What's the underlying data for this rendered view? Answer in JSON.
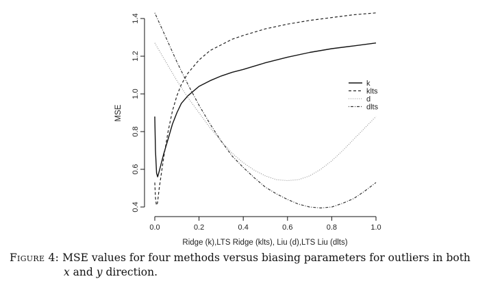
{
  "chart_data": {
    "type": "line",
    "title": "",
    "xlabel": "Ridge (k),LTS Ridge (klts), Liu (d),LTS Liu (dlts)",
    "ylabel": "MSE",
    "xlim": [
      0.0,
      1.0
    ],
    "ylim": [
      0.4,
      1.4
    ],
    "xticks": [
      "0.0",
      "0.2",
      "0.4",
      "0.6",
      "0.8",
      "1.0"
    ],
    "yticks": [
      "0.4",
      "0.6",
      "0.8",
      "1.0",
      "1.2",
      "1.4"
    ],
    "grid": false,
    "legend_position": "right-center",
    "series": [
      {
        "name": "k",
        "style": "solid",
        "points": [
          [
            0.0,
            0.88
          ],
          [
            0.003,
            0.7
          ],
          [
            0.008,
            0.58
          ],
          [
            0.013,
            0.56
          ],
          [
            0.02,
            0.59
          ],
          [
            0.04,
            0.68
          ],
          [
            0.06,
            0.76
          ],
          [
            0.08,
            0.84
          ],
          [
            0.1,
            0.9
          ],
          [
            0.12,
            0.95
          ],
          [
            0.15,
            0.99
          ],
          [
            0.2,
            1.04
          ],
          [
            0.25,
            1.07
          ],
          [
            0.3,
            1.095
          ],
          [
            0.35,
            1.115
          ],
          [
            0.4,
            1.13
          ],
          [
            0.5,
            1.165
          ],
          [
            0.6,
            1.195
          ],
          [
            0.7,
            1.22
          ],
          [
            0.8,
            1.24
          ],
          [
            0.9,
            1.255
          ],
          [
            1.0,
            1.27
          ]
        ]
      },
      {
        "name": "klts",
        "style": "dashed",
        "points": [
          [
            0.0,
            0.53
          ],
          [
            0.003,
            0.45
          ],
          [
            0.007,
            0.41
          ],
          [
            0.012,
            0.42
          ],
          [
            0.02,
            0.5
          ],
          [
            0.04,
            0.66
          ],
          [
            0.06,
            0.8
          ],
          [
            0.08,
            0.91
          ],
          [
            0.1,
            0.99
          ],
          [
            0.12,
            1.05
          ],
          [
            0.15,
            1.11
          ],
          [
            0.2,
            1.18
          ],
          [
            0.25,
            1.23
          ],
          [
            0.3,
            1.26
          ],
          [
            0.35,
            1.29
          ],
          [
            0.4,
            1.31
          ],
          [
            0.5,
            1.345
          ],
          [
            0.6,
            1.37
          ],
          [
            0.7,
            1.39
          ],
          [
            0.8,
            1.405
          ],
          [
            0.9,
            1.42
          ],
          [
            1.0,
            1.43
          ]
        ]
      },
      {
        "name": "d",
        "style": "dotted",
        "points": [
          [
            0.0,
            1.27
          ],
          [
            0.05,
            1.17
          ],
          [
            0.1,
            1.07
          ],
          [
            0.15,
            0.98
          ],
          [
            0.2,
            0.9
          ],
          [
            0.25,
            0.82
          ],
          [
            0.3,
            0.75
          ],
          [
            0.35,
            0.685
          ],
          [
            0.4,
            0.635
          ],
          [
            0.45,
            0.595
          ],
          [
            0.5,
            0.565
          ],
          [
            0.55,
            0.545
          ],
          [
            0.6,
            0.54
          ],
          [
            0.65,
            0.545
          ],
          [
            0.7,
            0.565
          ],
          [
            0.75,
            0.6
          ],
          [
            0.8,
            0.645
          ],
          [
            0.85,
            0.7
          ],
          [
            0.9,
            0.76
          ],
          [
            0.95,
            0.82
          ],
          [
            1.0,
            0.88
          ]
        ]
      },
      {
        "name": "dlts",
        "style": "dotdash",
        "points": [
          [
            0.0,
            1.43
          ],
          [
            0.05,
            1.3
          ],
          [
            0.1,
            1.17
          ],
          [
            0.15,
            1.05
          ],
          [
            0.2,
            0.94
          ],
          [
            0.25,
            0.84
          ],
          [
            0.3,
            0.75
          ],
          [
            0.35,
            0.67
          ],
          [
            0.4,
            0.61
          ],
          [
            0.45,
            0.555
          ],
          [
            0.5,
            0.505
          ],
          [
            0.55,
            0.47
          ],
          [
            0.6,
            0.44
          ],
          [
            0.65,
            0.415
          ],
          [
            0.7,
            0.4
          ],
          [
            0.75,
            0.395
          ],
          [
            0.8,
            0.4
          ],
          [
            0.85,
            0.42
          ],
          [
            0.9,
            0.445
          ],
          [
            0.95,
            0.485
          ],
          [
            1.0,
            0.53
          ]
        ]
      }
    ]
  },
  "legend": {
    "items": [
      {
        "label": "k",
        "style": "solid"
      },
      {
        "label": "klts",
        "style": "dashed"
      },
      {
        "label": "d",
        "style": "dotted"
      },
      {
        "label": "dlts",
        "style": "dotdash"
      }
    ]
  },
  "caption": {
    "label": "Figure 4:",
    "text_line1": "MSE values for four methods versus biasing parameters for outliers in both",
    "var_x": "x",
    "and": " and ",
    "var_y": "y",
    "text_line2_end": " direction."
  },
  "colors": {
    "k": "#111111",
    "klts": "#222222",
    "d": "#8a8a8a",
    "dlts": "#333333",
    "axis": "#111111"
  }
}
